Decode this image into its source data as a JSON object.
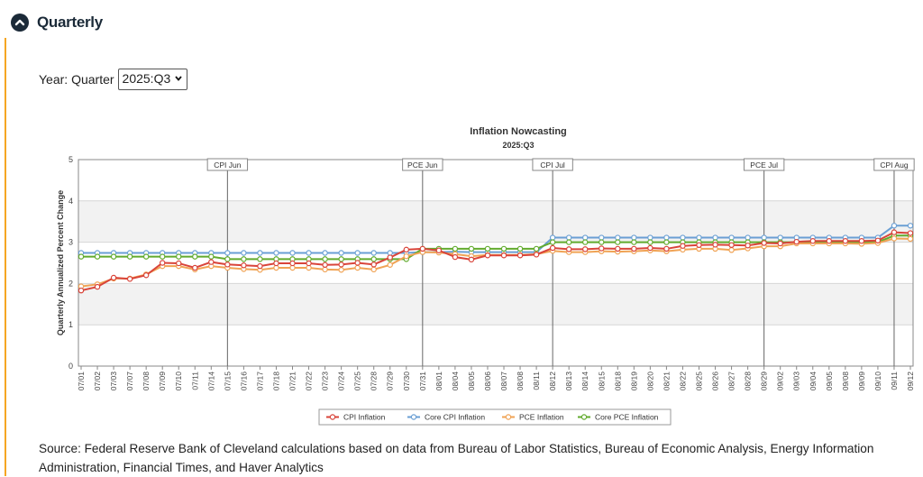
{
  "header": {
    "title": "Quarterly",
    "toggle_icon": "chevron-up-icon"
  },
  "quarter": {
    "label": "Year: Quarter",
    "selected": "2025:Q3"
  },
  "source_text": "Source: Federal Reserve Bank of Cleveland calculations based on data from Bureau of Labor Statistics, Bureau of Economic Analysis, Energy Information Administration, Financial Times, and Haver Analytics",
  "colors": {
    "accent": "#f5a623",
    "header": "#1b2a38",
    "cpi": "#d9443a",
    "core_cpi": "#6a9fd4",
    "pce": "#f0a355",
    "core_pce": "#62ab2e"
  },
  "chart_data": {
    "type": "line",
    "title": "Inflation Nowcasting",
    "subtitle": "2025:Q3",
    "xlabel": "",
    "ylabel": "Quarterly Annualized Percent Change",
    "ylim": [
      0,
      5
    ],
    "yticks": [
      0,
      1,
      2,
      3,
      4,
      5
    ],
    "grid": true,
    "legend_position": "bottom",
    "categories": [
      "07/01",
      "07/02",
      "07/03",
      "07/07",
      "07/08",
      "07/09",
      "07/10",
      "07/11",
      "07/14",
      "07/15",
      "07/16",
      "07/17",
      "07/18",
      "07/21",
      "07/22",
      "07/23",
      "07/24",
      "07/25",
      "07/28",
      "07/29",
      "07/30",
      "07/31",
      "08/01",
      "08/04",
      "08/05",
      "08/06",
      "08/07",
      "08/08",
      "08/11",
      "08/12",
      "08/13",
      "08/14",
      "08/15",
      "08/18",
      "08/19",
      "08/20",
      "08/21",
      "08/22",
      "08/25",
      "08/26",
      "08/27",
      "08/28",
      "08/29",
      "09/02",
      "09/03",
      "09/04",
      "09/05",
      "09/08",
      "09/09",
      "09/10",
      "09/11",
      "09/12"
    ],
    "series": [
      {
        "name": "CPI Inflation",
        "color": "#d9443a",
        "values": [
          1.83,
          1.92,
          2.14,
          2.11,
          2.2,
          2.5,
          2.49,
          2.38,
          2.52,
          2.46,
          2.44,
          2.42,
          2.49,
          2.49,
          2.49,
          2.45,
          2.46,
          2.5,
          2.46,
          2.63,
          2.82,
          2.84,
          2.8,
          2.64,
          2.58,
          2.68,
          2.68,
          2.68,
          2.7,
          2.86,
          2.83,
          2.83,
          2.85,
          2.84,
          2.84,
          2.86,
          2.84,
          2.91,
          2.93,
          2.94,
          2.93,
          2.92,
          2.98,
          2.97,
          3.01,
          3.03,
          3.03,
          3.03,
          3.03,
          3.04,
          3.24,
          3.22
        ]
      },
      {
        "name": "Core CPI Inflation",
        "color": "#6a9fd4",
        "values": [
          2.74,
          2.74,
          2.74,
          2.74,
          2.74,
          2.74,
          2.74,
          2.74,
          2.74,
          2.74,
          2.74,
          2.74,
          2.74,
          2.74,
          2.74,
          2.74,
          2.74,
          2.74,
          2.74,
          2.74,
          2.74,
          2.76,
          2.76,
          2.77,
          2.76,
          2.76,
          2.76,
          2.76,
          2.76,
          3.11,
          3.11,
          3.11,
          3.11,
          3.11,
          3.11,
          3.11,
          3.11,
          3.11,
          3.11,
          3.11,
          3.11,
          3.11,
          3.11,
          3.11,
          3.11,
          3.11,
          3.11,
          3.11,
          3.11,
          3.11,
          3.4,
          3.4
        ]
      },
      {
        "name": "PCE Inflation",
        "color": "#f0a355",
        "values": [
          1.93,
          1.98,
          2.12,
          2.12,
          2.22,
          2.42,
          2.42,
          2.34,
          2.42,
          2.38,
          2.35,
          2.33,
          2.38,
          2.38,
          2.38,
          2.34,
          2.33,
          2.38,
          2.34,
          2.45,
          2.66,
          2.76,
          2.75,
          2.71,
          2.66,
          2.69,
          2.69,
          2.69,
          2.71,
          2.79,
          2.76,
          2.76,
          2.78,
          2.77,
          2.78,
          2.8,
          2.78,
          2.82,
          2.84,
          2.84,
          2.81,
          2.85,
          2.9,
          2.9,
          2.97,
          2.97,
          2.97,
          2.97,
          2.96,
          2.98,
          3.09,
          3.08
        ]
      },
      {
        "name": "Core PCE Inflation",
        "color": "#62ab2e",
        "values": [
          2.65,
          2.65,
          2.65,
          2.65,
          2.65,
          2.65,
          2.65,
          2.65,
          2.65,
          2.59,
          2.59,
          2.59,
          2.59,
          2.59,
          2.59,
          2.59,
          2.59,
          2.59,
          2.59,
          2.59,
          2.59,
          2.84,
          2.84,
          2.84,
          2.84,
          2.84,
          2.84,
          2.84,
          2.84,
          3.0,
          3.0,
          3.0,
          3.0,
          3.0,
          3.0,
          3.0,
          3.0,
          3.0,
          3.0,
          3.0,
          3.0,
          3.0,
          3.0,
          3.0,
          3.0,
          3.0,
          3.0,
          3.0,
          3.0,
          3.0,
          3.16,
          3.16
        ]
      }
    ],
    "annotations": [
      {
        "label": "CPI Jun",
        "at": "07/15"
      },
      {
        "label": "PCE Jun",
        "at": "07/31"
      },
      {
        "label": "CPI Jul",
        "at": "08/12"
      },
      {
        "label": "PCE Jul",
        "at": "08/29"
      },
      {
        "label": "CPI Aug",
        "at": "09/11"
      }
    ]
  }
}
